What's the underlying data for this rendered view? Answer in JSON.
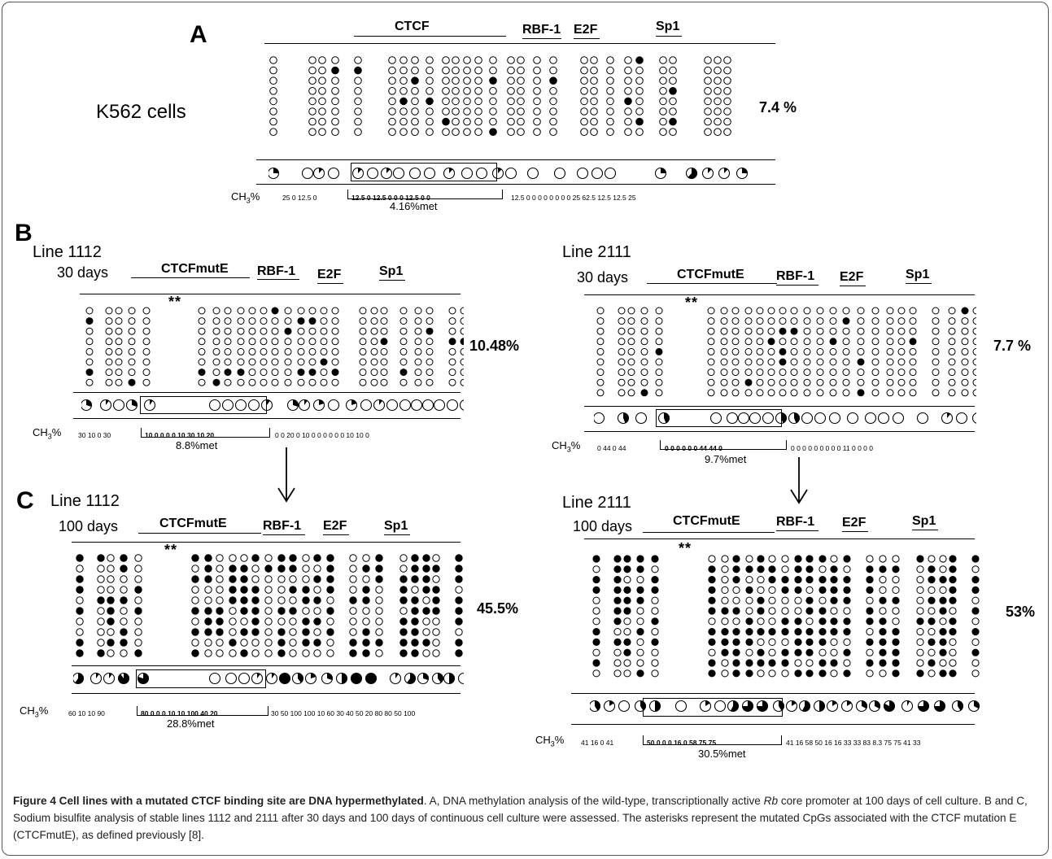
{
  "panels": {
    "A": {
      "letter": "A",
      "cell_label": "K562 cells",
      "sites": [
        "CTCF",
        "RBF-1",
        "E2F",
        "Sp1"
      ],
      "percent": "7.4 %",
      "ch3_prefix": "CH",
      "ch3_sub": "3",
      "ch3_suffix": "%",
      "values_left": "25   0   12.5 0",
      "values_box": "12.5    0  12.5   0   0   0   12.5 0   0",
      "values_right": "12.5   0   0   0     0   0   0   0   0   25  62.5  12.5  12.5  25",
      "met": "4.16%met",
      "methylation_fraction": 0.074
    },
    "B_left": {
      "letter": "B",
      "line": "Line 1112",
      "days": "30 days",
      "sites": [
        "CTCFmutE",
        "RBF-1",
        "E2F",
        "Sp1"
      ],
      "stars": "**",
      "percent": "10.48%",
      "ch3_prefix": "CH",
      "ch3_sub": "3",
      "ch3_suffix": "%",
      "values_left": "30  10  0  30",
      "values_box": "10    0   0   0   0  10  30  10  20",
      "values_right": "0  0  20   0    10  0  0  0  0      0    0        10 10   0",
      "met": "8.8%met",
      "methylation_fraction": 0.1048
    },
    "B_right": {
      "line": "Line 2111",
      "days": "30 days",
      "sites": [
        "CTCFmutE",
        "RBF-1",
        "E2F",
        "Sp1"
      ],
      "stars": "**",
      "percent": "7.7 %",
      "ch3_prefix": "CH",
      "ch3_sub": "3",
      "ch3_suffix": "%",
      "values_left": "0   44   0   44",
      "values_box": "0     0   0  0  0  0   44  44  0",
      "values_right": "0  0  0     0     0  0  0  0  0     11  0      0   0   0",
      "met": "9.7%met",
      "methylation_fraction": 0.077
    },
    "C_left": {
      "letter": "C",
      "line": "Line 1112",
      "days": "100 days",
      "sites": [
        "CTCFmutE",
        "RBF-1",
        "E2F",
        "Sp1"
      ],
      "stars": "**",
      "percent": "45.5%",
      "ch3_prefix": "CH",
      "ch3_sub": "3",
      "ch3_suffix": "%",
      "values_left": "60   10  10   90",
      "values_box": "80    0   0   0  10  10  100  40  20",
      "values_right": "30  50  100  100  10  60   30   40   50  20    80     80 50  100",
      "met": "28.8%met",
      "methylation_fraction": 0.455
    },
    "C_right": {
      "line": "Line 2111",
      "days": "100 days",
      "sites": [
        "CTCFmutE",
        "RBF-1",
        "E2F",
        "Sp1"
      ],
      "stars": "**",
      "percent": "53%",
      "ch3_prefix": "CH",
      "ch3_sub": "3",
      "ch3_suffix": "%",
      "values_left": "41     16   0  41",
      "values_box": "50    0  0  0  16  0  58    75   75",
      "values_right": "41   16  58   50    16  16  33  33  83     8.3  75      75   41  33",
      "met": "30.5%met",
      "methylation_fraction": 0.53
    }
  },
  "caption": {
    "title": "Figure 4 Cell lines with a mutated CTCF binding site are DNA hypermethylated",
    "text_1": ". A, DNA methylation analysis of the wild-type, transcriptionally active ",
    "gene": "Rb",
    "text_2": " core promoter at 100 days of cell culture. B and C, Sodium bisulfite analysis of stable lines 1112 and 2111 after 30 days and 100 days of continuous cell culture were assessed. The asterisks represent the mutated CpGs associated with the CTCF mutation E (CTCFmutE), as defined previously [8]."
  }
}
